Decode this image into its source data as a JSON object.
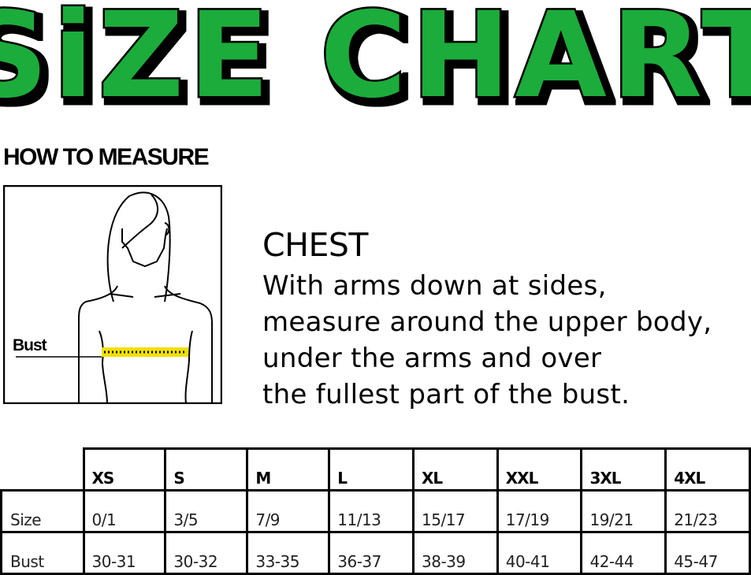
{
  "title": "SiZE CHART",
  "colors": {
    "title_fill": "#1fac3a",
    "title_outline": "#000000",
    "tape": "#f2df00"
  },
  "how_to_measure": "HOW TO MEASURE",
  "illustration": {
    "label": "Bust"
  },
  "chest": {
    "heading": "CHEST",
    "lines": [
      "With arms down at sides,",
      "measure around the upper body,",
      "under the arms and over",
      "the fullest part of the bust."
    ]
  },
  "table": {
    "columns": [
      "XS",
      "S",
      "M",
      "L",
      "XL",
      "XXL",
      "3XL",
      "4XL"
    ],
    "rows": [
      {
        "label": "Size",
        "values": [
          "0/1",
          "3/5",
          "7/9",
          "11/13",
          "15/17",
          "17/19",
          "19/21",
          "21/23"
        ]
      },
      {
        "label": "Bust",
        "values": [
          "30-31",
          "30-32",
          "33-35",
          "36-37",
          "38-39",
          "40-41",
          "42-44",
          "45-47"
        ]
      }
    ]
  }
}
